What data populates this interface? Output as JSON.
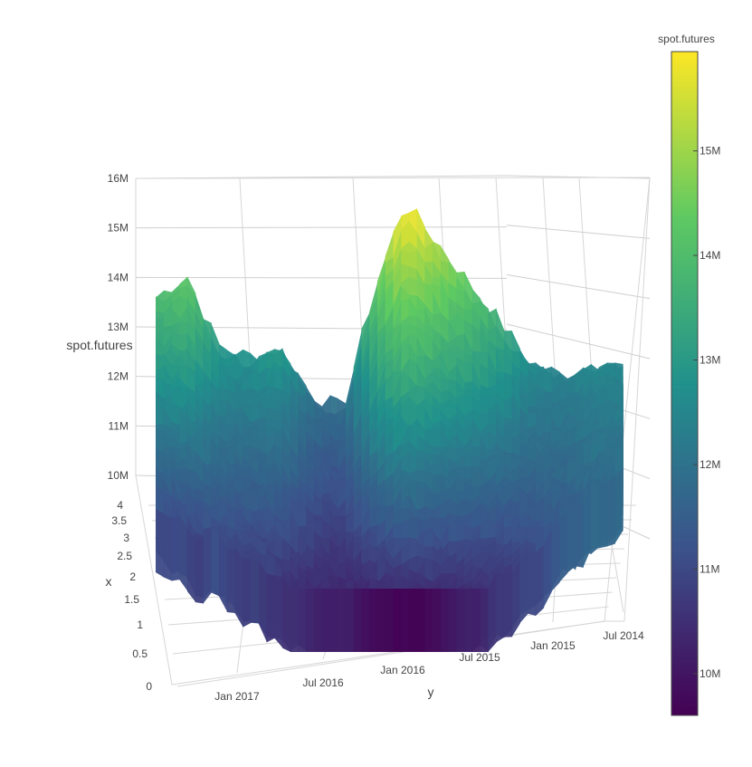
{
  "chart_data": {
    "type": "surface",
    "title": "",
    "colorscale": "viridis",
    "colors": [
      "#440154",
      "#3b528b",
      "#21918c",
      "#5ec962",
      "#fde725"
    ],
    "x_axis": {
      "label": "x",
      "ticks": [
        "0",
        "0.5",
        "1",
        "1.5",
        "2",
        "2.5",
        "3",
        "3.5",
        "4"
      ]
    },
    "y_axis": {
      "label": "y",
      "ticks": [
        "Jan 2017",
        "Jul 2016",
        "Jan 2016",
        "Jul 2015",
        "Jan 2015",
        "Jul 2014"
      ]
    },
    "z_axis": {
      "label": "spot.futures",
      "ticks": [
        "10M",
        "11M",
        "12M",
        "13M",
        "14M",
        "15M",
        "16M"
      ],
      "range": [
        10000000,
        16000000
      ]
    },
    "colorbar": {
      "title": "spot.futures",
      "ticks": [
        "10M",
        "11M",
        "12M",
        "13M",
        "14M",
        "15M"
      ],
      "range": [
        9600000,
        15950000
      ]
    },
    "surface_profile": {
      "y": [
        "2017-02",
        "2016-12",
        "2016-10",
        "2016-08",
        "2016-06",
        "2016-04",
        "2016-02",
        "2015-12",
        "2015-10",
        "2015-08",
        "2015-06",
        "2015-04",
        "2015-02",
        "2014-12",
        "2014-10",
        "2014-07"
      ],
      "z_max": [
        13800000,
        14300000,
        12900000,
        12700000,
        12900000,
        12000000,
        11700000,
        14100000,
        15900000,
        15100000,
        14300000,
        13500000,
        12600000,
        12300000,
        12500000,
        12400000
      ],
      "z_min": [
        11200000,
        10900000,
        11000000,
        10800000,
        10600000,
        10300000,
        10100000,
        9800000,
        9600000,
        9800000,
        10200000,
        10600000,
        11000000,
        11400000,
        11700000,
        11900000
      ]
    }
  }
}
